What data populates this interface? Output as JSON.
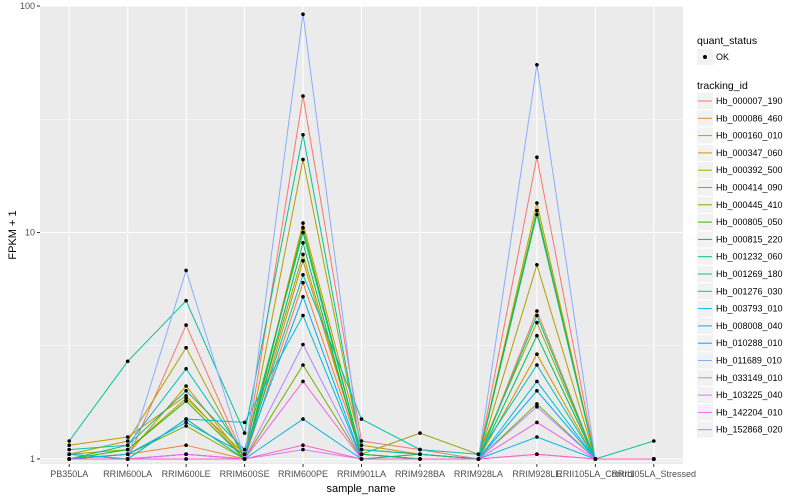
{
  "chart_data": {
    "type": "line",
    "xlabel": "sample_name",
    "ylabel": "FPKM + 1",
    "y_scale": "log10",
    "ylim": [
      0.95,
      100
    ],
    "yticks": [
      1,
      10,
      100
    ],
    "ytick_labels": [
      "1",
      "10",
      "100"
    ],
    "grid": true,
    "background": "#ebebeb",
    "legend_position": "right",
    "categories": [
      "PB350LA",
      "RRIM600LA",
      "RRIM600LE",
      "RRIM600SE",
      "RRIM600PE",
      "RRIM901LA",
      "RRIM928BA",
      "RRIM928LA",
      "RRIM928LE",
      "RRII105LA_Control",
      "RRII105LA_Stressed"
    ],
    "shape_legend": {
      "title": "quant_status",
      "items": [
        {
          "label": "OK",
          "shape": "circle"
        }
      ]
    },
    "color_legend_title": "tracking_id",
    "series": [
      {
        "name": "Hb_000007_190",
        "color": "#F8766D",
        "values": [
          1.0,
          1.0,
          3.9,
          1.0,
          40.0,
          1.2,
          1.1,
          1.0,
          21.5,
          1.0,
          1.0
        ]
      },
      {
        "name": "Hb_000086_460",
        "color": "#EC8239",
        "values": [
          1.0,
          1.05,
          1.15,
          1.0,
          6.0,
          1.05,
          1.0,
          1.0,
          4.5,
          1.0,
          1.0
        ]
      },
      {
        "name": "Hb_000160_010",
        "color": "#DB8E00",
        "values": [
          1.0,
          1.05,
          2.1,
          1.0,
          7.5,
          1.05,
          1.0,
          1.0,
          2.9,
          1.0,
          1.0
        ]
      },
      {
        "name": "Hb_000347_060",
        "color": "#C79800",
        "values": [
          1.15,
          1.25,
          1.9,
          1.0,
          11.0,
          1.15,
          1.05,
          1.0,
          13.5,
          1.0,
          1.0
        ]
      },
      {
        "name": "Hb_000392_500",
        "color": "#AFA100",
        "values": [
          1.05,
          1.2,
          3.1,
          1.0,
          21.0,
          1.1,
          1.05,
          1.0,
          7.2,
          1.0,
          1.0
        ]
      },
      {
        "name": "Hb_000414_090",
        "color": "#94A900",
        "values": [
          1.05,
          1.1,
          1.85,
          1.05,
          8.0,
          1.05,
          1.3,
          1.05,
          4.0,
          1.0,
          1.0
        ]
      },
      {
        "name": "Hb_000445_410",
        "color": "#72B000",
        "values": [
          1.0,
          1.05,
          1.4,
          1.0,
          2.6,
          1.0,
          1.0,
          1.0,
          1.75,
          1.0,
          1.0
        ]
      },
      {
        "name": "Hb_000805_050",
        "color": "#3DB700",
        "values": [
          1.0,
          1.1,
          1.8,
          1.0,
          10.5,
          1.05,
          1.0,
          1.0,
          12.5,
          1.0,
          1.0
        ]
      },
      {
        "name": "Hb_000815_220",
        "color": "#00BC59",
        "values": [
          1.05,
          1.0,
          1.5,
          1.0,
          9.0,
          1.0,
          1.05,
          1.0,
          3.5,
          1.0,
          1.0
        ]
      },
      {
        "name": "Hb_001232_060",
        "color": "#00BF7D",
        "values": [
          1.0,
          1.15,
          2.0,
          1.1,
          10.0,
          1.05,
          1.0,
          1.0,
          12.0,
          1.0,
          1.0
        ]
      },
      {
        "name": "Hb_001269_180",
        "color": "#00C19C",
        "values": [
          1.2,
          2.7,
          5.0,
          1.3,
          27.0,
          1.1,
          1.05,
          1.0,
          4.3,
          1.0,
          1.2
        ]
      },
      {
        "name": "Hb_001276_030",
        "color": "#00C0B8",
        "values": [
          1.1,
          1.15,
          2.5,
          1.05,
          6.5,
          1.5,
          1.1,
          1.05,
          2.6,
          1.0,
          1.0
        ]
      },
      {
        "name": "Hb_003793_010",
        "color": "#00BCD1",
        "values": [
          1.05,
          1.0,
          1.5,
          1.45,
          4.3,
          1.0,
          1.0,
          1.0,
          2.2,
          1.0,
          1.0
        ]
      },
      {
        "name": "Hb_008008_040",
        "color": "#00B5E5",
        "values": [
          1.0,
          1.0,
          1.05,
          1.0,
          1.5,
          1.0,
          1.0,
          1.0,
          1.25,
          1.0,
          1.0
        ]
      },
      {
        "name": "Hb_010288_010",
        "color": "#00ABF8",
        "values": [
          1.0,
          1.05,
          1.45,
          1.05,
          5.2,
          1.0,
          1.0,
          1.0,
          2.0,
          1.0,
          1.0
        ]
      },
      {
        "name": "Hb_011689_010",
        "color": "#8AACFF",
        "values": [
          1.0,
          1.0,
          6.8,
          1.0,
          92.0,
          1.0,
          1.0,
          1.0,
          55.0,
          1.0,
          1.0
        ]
      },
      {
        "name": "Hb_033149_010",
        "color": "#B385FF",
        "values": [
          1.0,
          1.0,
          1.05,
          1.0,
          3.2,
          1.0,
          1.0,
          1.0,
          1.7,
          1.0,
          1.0
        ]
      },
      {
        "name": "Hb_103225_040",
        "color": "#D17BF8",
        "values": [
          1.0,
          1.0,
          1.0,
          1.0,
          1.1,
          1.0,
          1.0,
          1.0,
          1.05,
          1.0,
          1.0
        ]
      },
      {
        "name": "Hb_142204_010",
        "color": "#F365E6",
        "values": [
          1.0,
          1.0,
          1.05,
          1.0,
          2.2,
          1.0,
          1.0,
          1.0,
          1.45,
          1.0,
          1.0
        ]
      },
      {
        "name": "Hb_152868_020",
        "color": "#FF61C3",
        "values": [
          1.0,
          1.0,
          1.0,
          1.0,
          1.15,
          1.0,
          1.0,
          1.0,
          1.05,
          1.0,
          1.0
        ]
      }
    ]
  }
}
